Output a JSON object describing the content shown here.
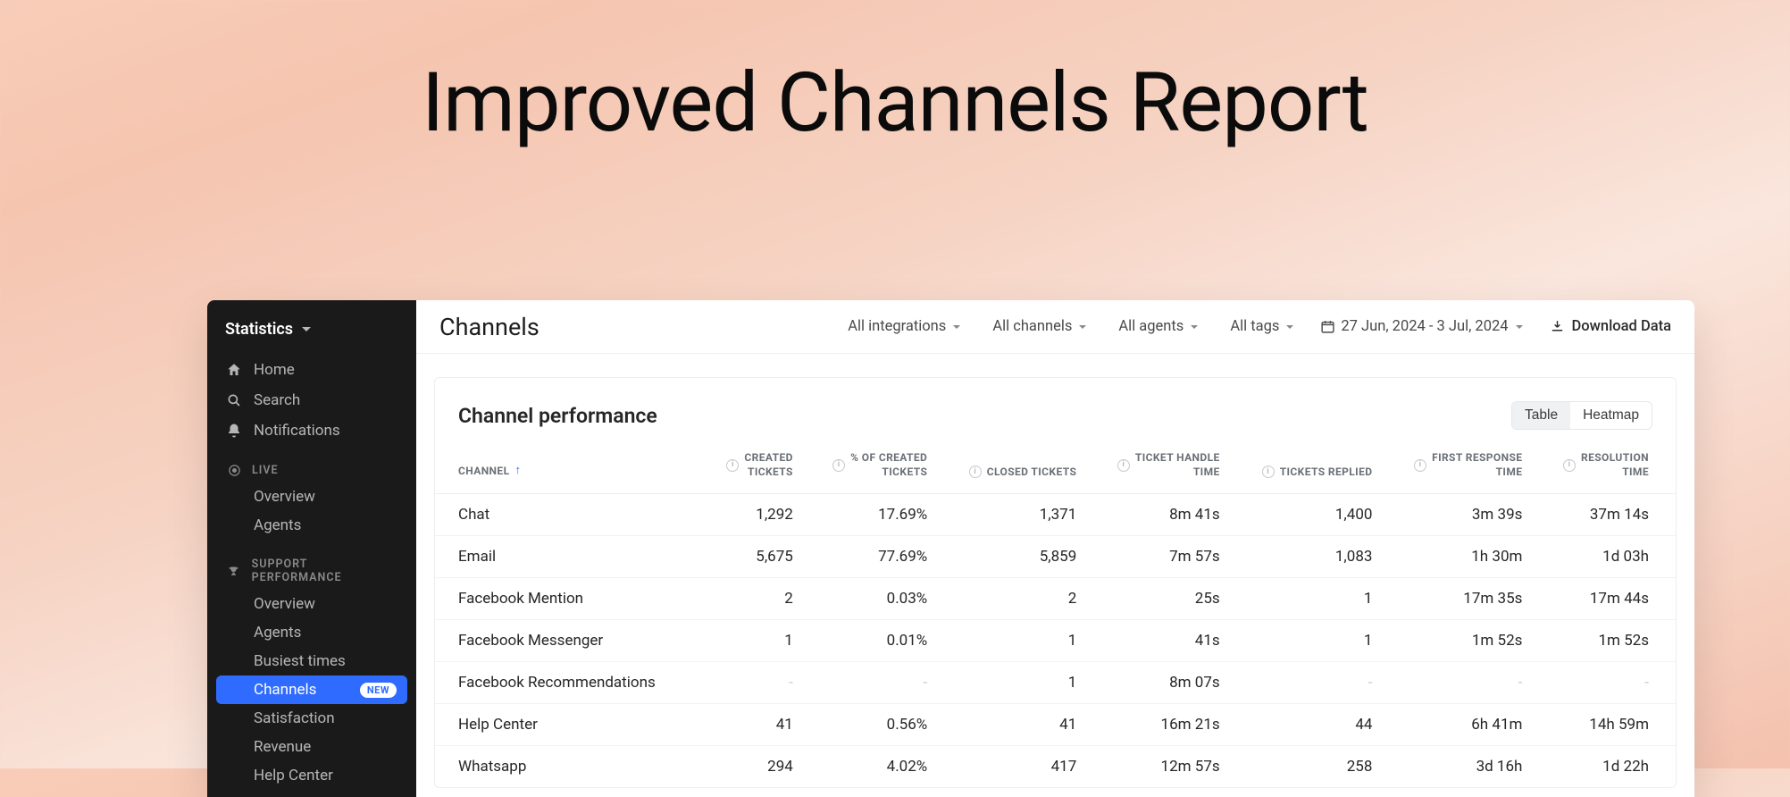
{
  "hero": {
    "title": "Improved Channels Report"
  },
  "sidebar": {
    "title": "Statistics",
    "nav": [
      {
        "icon": "home",
        "label": "Home"
      },
      {
        "icon": "search",
        "label": "Search"
      },
      {
        "icon": "bell",
        "label": "Notifications"
      }
    ],
    "sections": [
      {
        "icon": "target",
        "label": "LIVE",
        "items": [
          {
            "label": "Overview"
          },
          {
            "label": "Agents"
          }
        ]
      },
      {
        "icon": "trophy",
        "label": "SUPPORT PERFORMANCE",
        "items": [
          {
            "label": "Overview"
          },
          {
            "label": "Agents"
          },
          {
            "label": "Busiest times"
          },
          {
            "label": "Channels",
            "active": true,
            "badge": "NEW"
          },
          {
            "label": "Satisfaction"
          },
          {
            "label": "Revenue"
          },
          {
            "label": "Help Center"
          }
        ]
      }
    ]
  },
  "topbar": {
    "title": "Channels",
    "filters": [
      {
        "label": "All integrations"
      },
      {
        "label": "All channels"
      },
      {
        "label": "All agents"
      },
      {
        "label": "All tags"
      }
    ],
    "date_range": "27 Jun, 2024 - 3 Jul, 2024",
    "download_label": "Download Data"
  },
  "card": {
    "title": "Channel performance",
    "toggle": {
      "options": [
        "Table",
        "Heatmap"
      ],
      "active": "Table"
    }
  },
  "table": {
    "columns": [
      {
        "label": "CHANNEL",
        "sorted": true
      },
      {
        "label": "CREATED TICKETS",
        "info": true,
        "wrap": true
      },
      {
        "label": "% OF CREATED TICKETS",
        "info": true,
        "wrap": true
      },
      {
        "label": "CLOSED TICKETS",
        "info": true
      },
      {
        "label": "TICKET HANDLE TIME",
        "info": true,
        "wrap": true
      },
      {
        "label": "TICKETS REPLIED",
        "info": true
      },
      {
        "label": "FIRST RESPONSE TIME",
        "info": true,
        "wrap": true
      },
      {
        "label": "RESOLUTION TIME",
        "info": true,
        "wrap": true
      }
    ],
    "rows": [
      [
        "Chat",
        "1,292",
        "17.69%",
        "1,371",
        "8m 41s",
        "1,400",
        "3m 39s",
        "37m 14s"
      ],
      [
        "Email",
        "5,675",
        "77.69%",
        "5,859",
        "7m 57s",
        "1,083",
        "1h 30m",
        "1d 03h"
      ],
      [
        "Facebook Mention",
        "2",
        "0.03%",
        "2",
        "25s",
        "1",
        "17m 35s",
        "17m 44s"
      ],
      [
        "Facebook Messenger",
        "1",
        "0.01%",
        "1",
        "41s",
        "1",
        "1m 52s",
        "1m 52s"
      ],
      [
        "Facebook Recommendations",
        "-",
        "-",
        "1",
        "8m 07s",
        "-",
        "-",
        "-"
      ],
      [
        "Help Center",
        "41",
        "0.56%",
        "41",
        "16m 21s",
        "44",
        "6h 41m",
        "14h 59m"
      ],
      [
        "Whatsapp",
        "294",
        "4.02%",
        "417",
        "12m 57s",
        "258",
        "3d 16h",
        "1d 22h"
      ]
    ]
  },
  "colors": {
    "sidebar_bg": "#1a1a1a",
    "accent": "#2f6bff",
    "text": "#262626",
    "text_muted": "#6a6f76",
    "border": "#eceef0"
  }
}
